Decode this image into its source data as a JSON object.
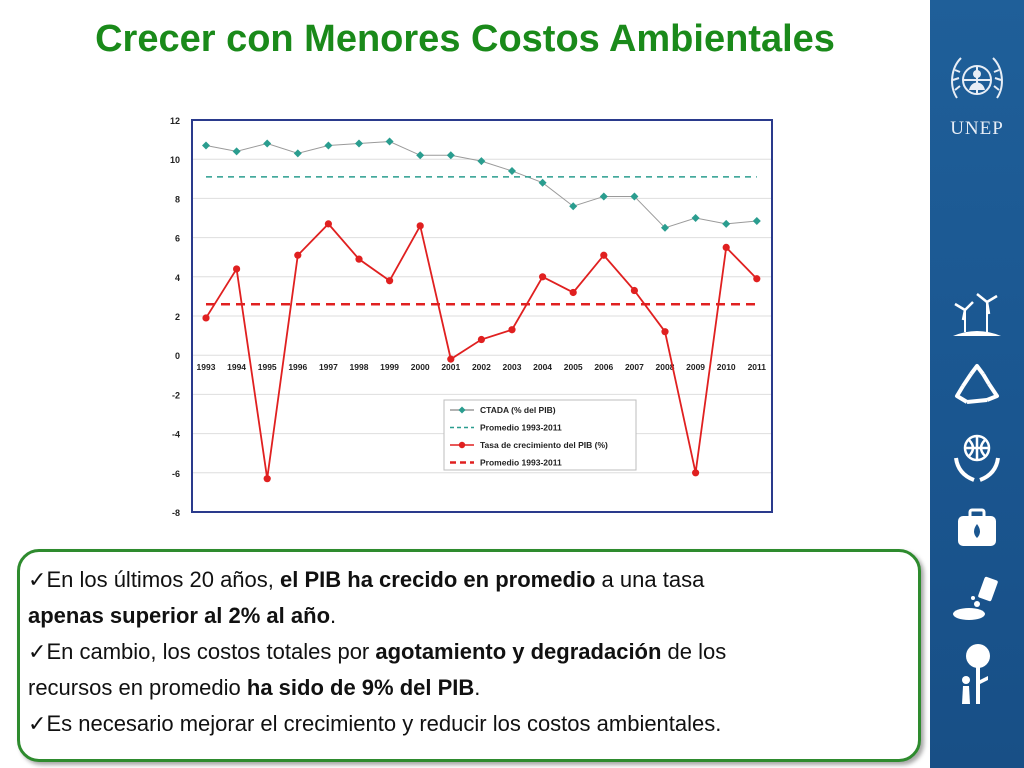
{
  "title": "Crecer con Menores Costos Ambientales",
  "sidebar": {
    "logo_text": "UNEP",
    "icons": [
      "un-emblem-icon",
      "wind-turbines-icon",
      "recycle-icon",
      "globe-hands-icon",
      "medical-kit-icon",
      "oil-spill-icon",
      "tree-person-icon"
    ]
  },
  "chart_data": {
    "type": "line",
    "categories": [
      "1993",
      "1994",
      "1995",
      "1996",
      "1997",
      "1998",
      "1999",
      "2000",
      "2001",
      "2002",
      "2003",
      "2004",
      "2005",
      "2006",
      "2007",
      "2008",
      "2009",
      "2010",
      "2011"
    ],
    "series": [
      {
        "name": "CTADA (% del PIB)",
        "color": "#2a9d8f",
        "marker": "diamond",
        "values": [
          10.7,
          10.4,
          10.8,
          10.3,
          10.7,
          10.8,
          10.9,
          10.2,
          10.2,
          9.9,
          9.4,
          8.8,
          7.6,
          8.1,
          8.1,
          6.5,
          7.0,
          6.7,
          6.85
        ]
      },
      {
        "name": "Promedio 1993-2011",
        "color": "#2a9d8f",
        "style": "dashed",
        "values": [
          9.1,
          9.1,
          9.1,
          9.1,
          9.1,
          9.1,
          9.1,
          9.1,
          9.1,
          9.1,
          9.1,
          9.1,
          9.1,
          9.1,
          9.1,
          9.1,
          9.1,
          9.1,
          9.1
        ]
      },
      {
        "name": "Tasa de crecimiento del PIB (%)",
        "color": "#e02020",
        "marker": "circle",
        "values": [
          1.9,
          4.4,
          -6.3,
          5.1,
          6.7,
          4.9,
          3.8,
          6.6,
          -0.2,
          0.8,
          1.3,
          4.0,
          3.2,
          5.1,
          3.3,
          1.2,
          -6.0,
          5.5,
          3.9
        ]
      },
      {
        "name": "Promedio 1993-2011",
        "color": "#e02020",
        "style": "dashed",
        "values": [
          2.6,
          2.6,
          2.6,
          2.6,
          2.6,
          2.6,
          2.6,
          2.6,
          2.6,
          2.6,
          2.6,
          2.6,
          2.6,
          2.6,
          2.6,
          2.6,
          2.6,
          2.6,
          2.6
        ]
      }
    ],
    "ylim": [
      -8,
      12
    ],
    "yticks": [
      "12",
      "10",
      "8",
      "6",
      "4",
      "2",
      "0",
      "-2",
      "-4",
      "-6",
      "-8"
    ],
    "grid": true,
    "legend_position": "bottom-right-inside"
  },
  "bullets": [
    {
      "check": "✓",
      "text1": "En los últimos 20 años, ",
      "bold1": "el PIB ha crecido en promedio",
      "text2": " a una tasa",
      "line2_bold": "apenas superior al 2% al año",
      "line2_text": "."
    },
    {
      "check": "✓",
      "text1": "En cambio, los costos totales por ",
      "bold1": "agotamiento y degradación",
      "text2": " de los",
      "line2_text1": "recursos en promedio ",
      "line2_bold": "ha sido de 9% del PIB",
      "line2_text2": "."
    },
    {
      "check": "✓",
      "text1": "Es necesario mejorar el crecimiento y reducir los costos ambientales."
    }
  ]
}
